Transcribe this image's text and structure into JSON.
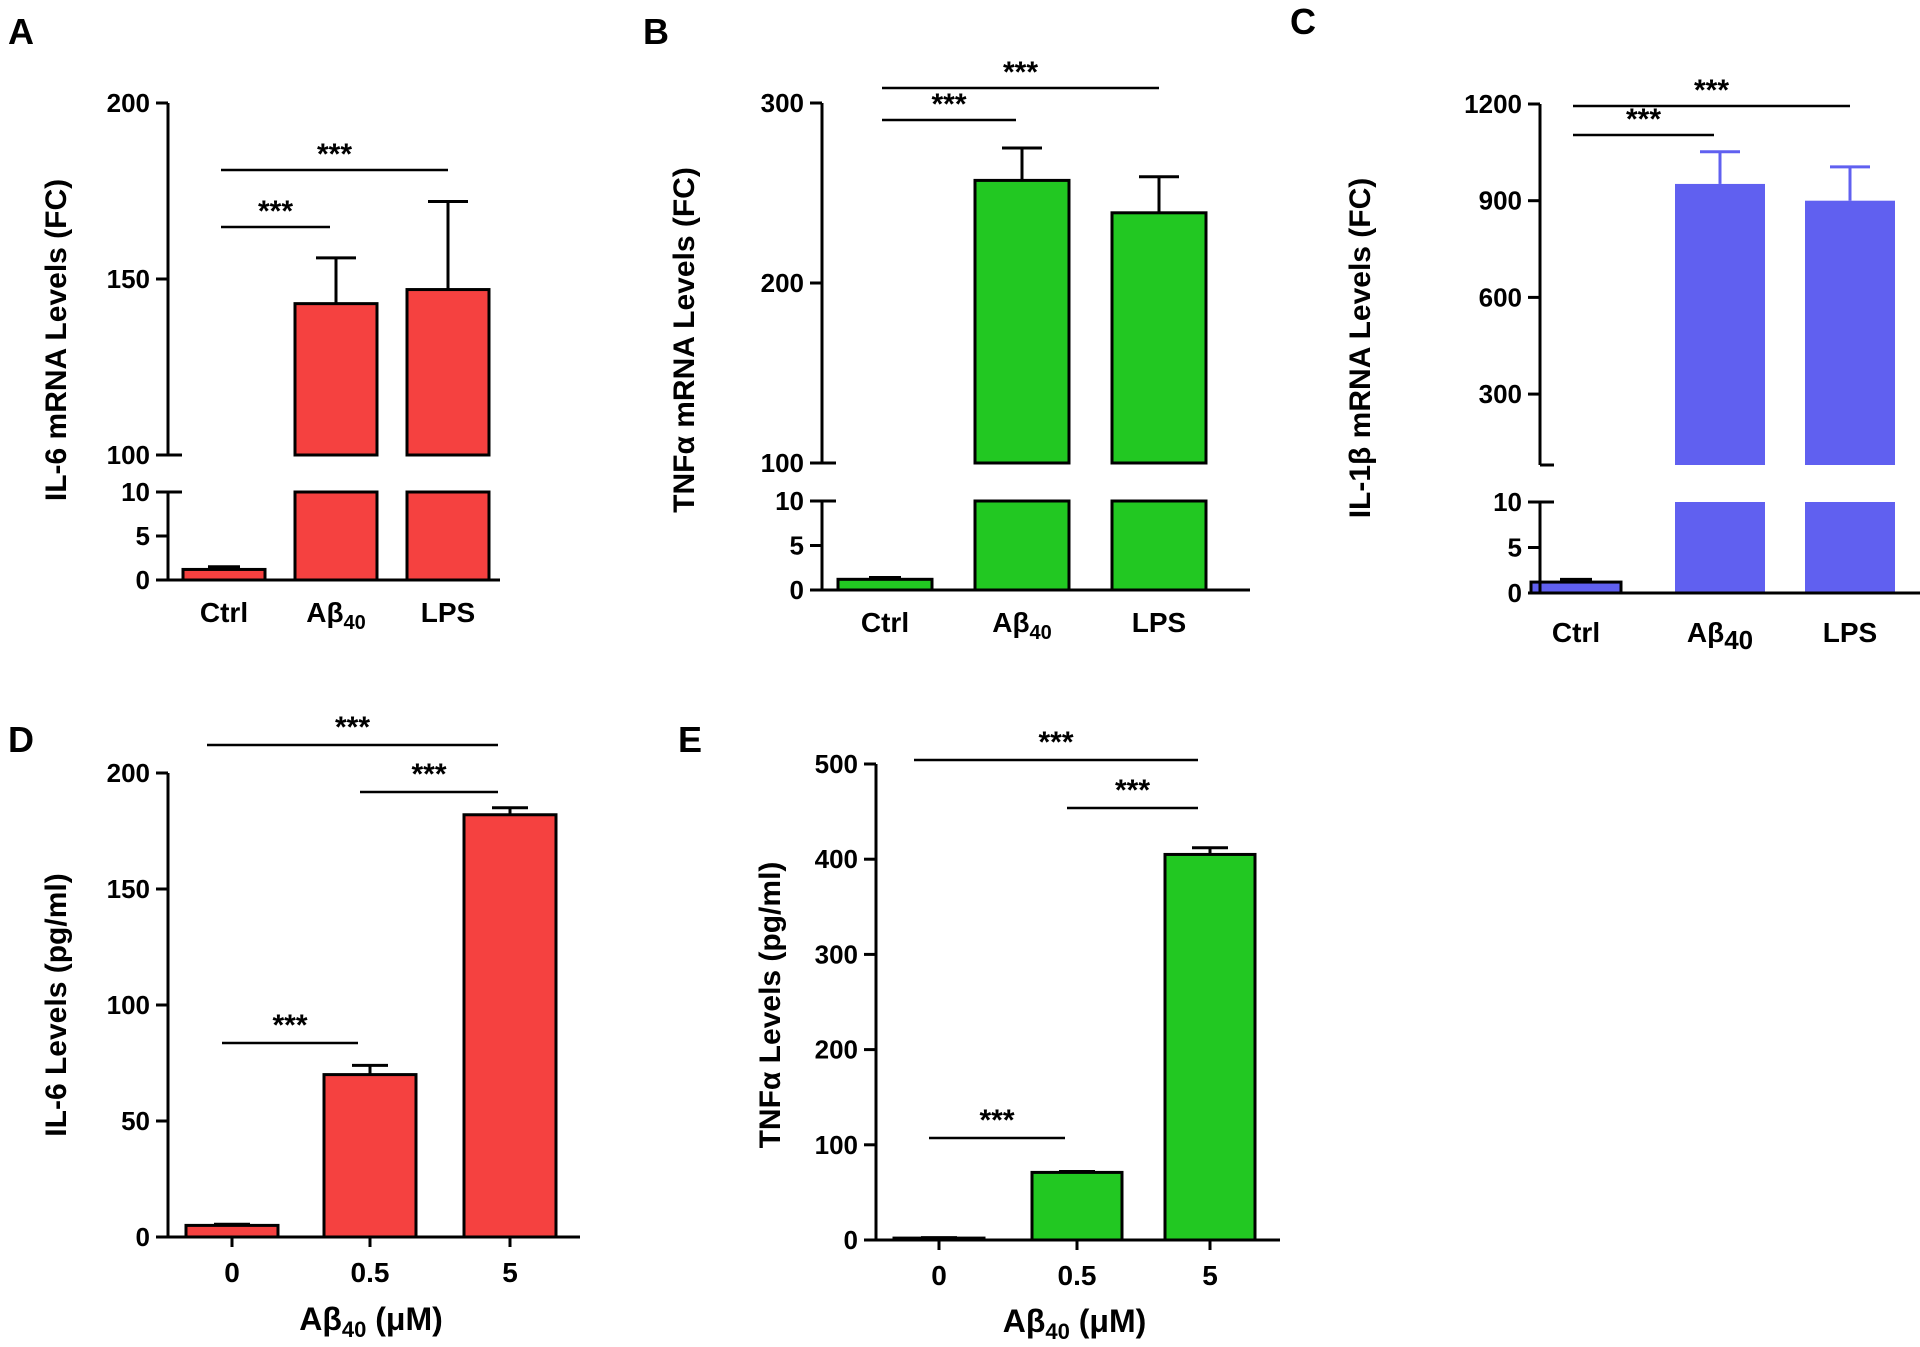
{
  "chart_data": [
    {
      "panel": "A",
      "type": "bar",
      "categories": [
        "Ctrl",
        "Aβ40",
        "LPS"
      ],
      "values": [
        1.2,
        143,
        147
      ],
      "errors": [
        0.3,
        13,
        25
      ],
      "ylabel": "IL-6 mRNA Levels (FC)",
      "xlabel": "",
      "color": "#f54140",
      "axis_break": {
        "low_range": [
          0,
          10
        ],
        "high_range": [
          100,
          200
        ]
      },
      "yticks_low": [
        "0",
        "5",
        "10"
      ],
      "yticks_high": [
        "100",
        "150",
        "200"
      ],
      "significance": [
        {
          "from": "Ctrl",
          "to": "Aβ40",
          "label": "***"
        },
        {
          "from": "Ctrl",
          "to": "LPS",
          "label": "***"
        }
      ]
    },
    {
      "panel": "B",
      "type": "bar",
      "categories": [
        "Ctrl",
        "Aβ40",
        "LPS"
      ],
      "values": [
        1.2,
        257,
        239
      ],
      "errors": [
        0.2,
        18,
        20
      ],
      "ylabel": "TNFα mRNA Levels (FC)",
      "xlabel": "",
      "color": "#22c822",
      "axis_break": {
        "low_range": [
          0,
          10
        ],
        "high_range": [
          100,
          300
        ]
      },
      "yticks_low": [
        "0",
        "5",
        "10"
      ],
      "yticks_high": [
        "100",
        "200",
        "300"
      ],
      "significance": [
        {
          "from": "Ctrl",
          "to": "Aβ40",
          "label": "***"
        },
        {
          "from": "Ctrl",
          "to": "LPS",
          "label": "***"
        }
      ]
    },
    {
      "panel": "C",
      "type": "bar",
      "categories": [
        "Ctrl",
        "Aβ40",
        "LPS"
      ],
      "values": [
        1.2,
        952,
        900
      ],
      "errors": [
        0.3,
        100,
        105
      ],
      "ylabel": "IL-1β mRNA Levels (FC)",
      "xlabel": "",
      "color": "#6060f0",
      "axis_break": {
        "low_range": [
          0,
          10
        ],
        "high_range": [
          80,
          1200
        ]
      },
      "yticks_low": [
        "0",
        "5",
        "10"
      ],
      "yticks_high": [
        "300",
        "600",
        "900",
        "1200"
      ],
      "significance": [
        {
          "from": "Ctrl",
          "to": "Aβ40",
          "label": "***"
        },
        {
          "from": "Ctrl",
          "to": "LPS",
          "label": "***"
        }
      ]
    },
    {
      "panel": "D",
      "type": "bar",
      "categories": [
        "0",
        "0.5",
        "5"
      ],
      "values": [
        5,
        70,
        182
      ],
      "errors": [
        0.5,
        4,
        3
      ],
      "ylabel": "IL-6 Levels (pg/ml)",
      "xlabel": "Aβ40 (μM)",
      "color": "#f54140",
      "ylim": [
        0,
        200
      ],
      "yticks": [
        "0",
        "50",
        "100",
        "150",
        "200"
      ],
      "significance": [
        {
          "from": "0",
          "to": "0.5",
          "label": "***"
        },
        {
          "from": "0.5",
          "to": "5",
          "label": "***"
        },
        {
          "from": "0",
          "to": "5",
          "label": "***"
        }
      ]
    },
    {
      "panel": "E",
      "type": "bar",
      "categories": [
        "0",
        "0.5",
        "5"
      ],
      "values": [
        2,
        71,
        405
      ],
      "errors": [
        0.5,
        1,
        7
      ],
      "ylabel": "TNFα Levels (pg/ml)",
      "xlabel": "Aβ40 (μM)",
      "color": "#22c822",
      "ylim": [
        0,
        500
      ],
      "yticks": [
        "0",
        "100",
        "200",
        "300",
        "400",
        "500"
      ],
      "significance": [
        {
          "from": "0",
          "to": "0.5",
          "label": "***"
        },
        {
          "from": "0.5",
          "to": "5",
          "label": "***"
        },
        {
          "from": "0",
          "to": "5",
          "label": "***"
        }
      ]
    }
  ]
}
